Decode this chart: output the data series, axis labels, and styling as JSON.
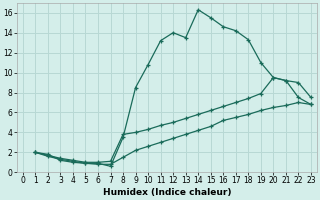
{
  "xlabel": "Humidex (Indice chaleur)",
  "bg_color": "#d4eeea",
  "grid_color": "#b8d8d4",
  "line_color": "#1a6b5a",
  "xlim": [
    -0.5,
    23.5
  ],
  "ylim": [
    0,
    17
  ],
  "xticks": [
    0,
    1,
    2,
    3,
    4,
    5,
    6,
    7,
    8,
    9,
    10,
    11,
    12,
    13,
    14,
    15,
    16,
    17,
    18,
    19,
    20,
    21,
    22,
    23
  ],
  "yticks": [
    0,
    2,
    4,
    6,
    8,
    10,
    12,
    14,
    16
  ],
  "series1_x": [
    1,
    2,
    3,
    4,
    5,
    6,
    7,
    8,
    9,
    10,
    11,
    12,
    13,
    14,
    15,
    16,
    17,
    18,
    19,
    20,
    21,
    22,
    23
  ],
  "series1_y": [
    2.0,
    1.8,
    1.2,
    1.0,
    0.9,
    0.9,
    0.6,
    3.5,
    8.5,
    10.8,
    13.2,
    14.0,
    13.5,
    16.3,
    15.5,
    14.6,
    14.2,
    13.3,
    11.0,
    9.5,
    9.2,
    7.5,
    6.8
  ],
  "series2_x": [
    1,
    2,
    3,
    4,
    5,
    6,
    7,
    8,
    9,
    10,
    11,
    12,
    13,
    14,
    15,
    16,
    17,
    18,
    19,
    20,
    21,
    22,
    23
  ],
  "series2_y": [
    2.0,
    1.7,
    1.4,
    1.2,
    1.0,
    1.0,
    1.1,
    3.8,
    4.0,
    4.3,
    4.7,
    5.0,
    5.4,
    5.8,
    6.2,
    6.6,
    7.0,
    7.4,
    7.9,
    9.5,
    9.2,
    9.0,
    7.5
  ],
  "series3_x": [
    1,
    2,
    3,
    4,
    5,
    6,
    7,
    8,
    9,
    10,
    11,
    12,
    13,
    14,
    15,
    16,
    17,
    18,
    19,
    20,
    21,
    22,
    23
  ],
  "series3_y": [
    2.0,
    1.6,
    1.3,
    1.1,
    0.9,
    0.8,
    0.8,
    1.5,
    2.2,
    2.6,
    3.0,
    3.4,
    3.8,
    4.2,
    4.6,
    5.2,
    5.5,
    5.8,
    6.2,
    6.5,
    6.7,
    7.0,
    6.8
  ],
  "marker": "+",
  "markersize": 3,
  "linewidth": 0.9,
  "tick_fontsize": 5.5,
  "xlabel_fontsize": 6.5
}
